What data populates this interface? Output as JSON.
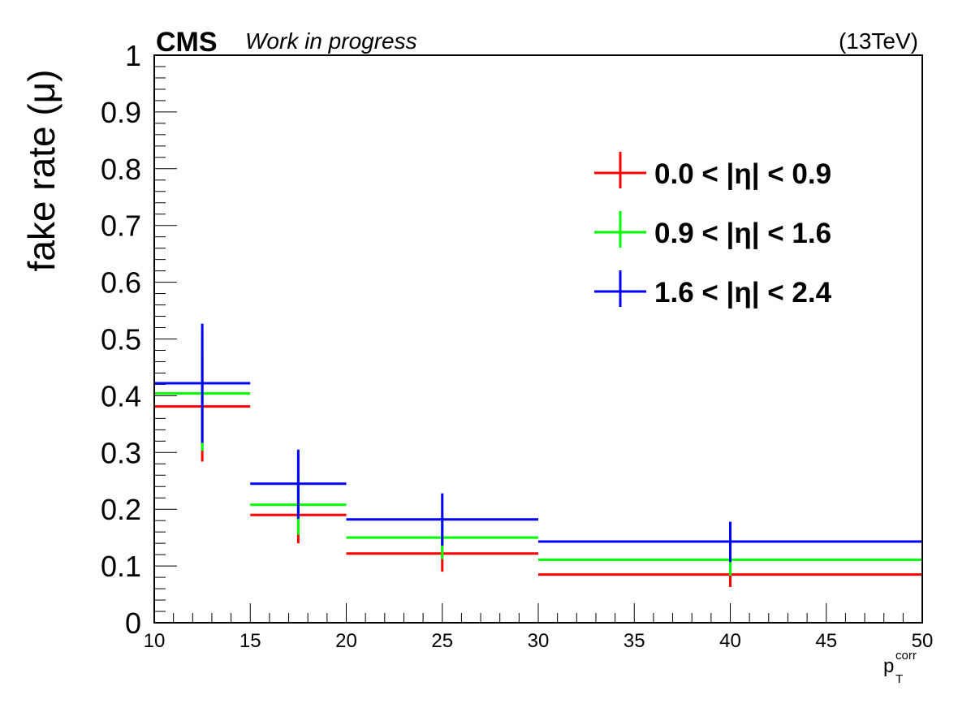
{
  "header": {
    "experiment": "CMS",
    "status": "Work in progress",
    "energy": "(13TeV)"
  },
  "chart_data": {
    "type": "scatter",
    "title": "",
    "ylabel": "fake rate (μ)",
    "xlabel_main": "p",
    "xlabel_sup": "corr",
    "xlabel_sub": "T",
    "xlim": [
      10,
      50
    ],
    "ylim": [
      0,
      1
    ],
    "x_ticks": [
      "10",
      "15",
      "20",
      "25",
      "30",
      "35",
      "40",
      "45",
      "50"
    ],
    "y_ticks": [
      "0",
      "0.1",
      "0.2",
      "0.3",
      "0.4",
      "0.5",
      "0.6",
      "0.7",
      "0.8",
      "0.9",
      "1"
    ],
    "grid": false,
    "legend_position": "top-right",
    "series": [
      {
        "name": "0.0 < |η| < 0.9",
        "color": "#ff0000",
        "points": [
          {
            "x": 12.5,
            "xlow": 10,
            "xhigh": 15,
            "y": 0.381,
            "ylow": 0.284,
            "yhigh": 0.475
          },
          {
            "x": 17.5,
            "xlow": 15,
            "xhigh": 20,
            "y": 0.19,
            "ylow": 0.14,
            "yhigh": 0.24
          },
          {
            "x": 25,
            "xlow": 20,
            "xhigh": 30,
            "y": 0.122,
            "ylow": 0.09,
            "yhigh": 0.155
          },
          {
            "x": 40,
            "xlow": 30,
            "xhigh": 50,
            "y": 0.085,
            "ylow": 0.063,
            "yhigh": 0.108
          }
        ]
      },
      {
        "name": "0.9 < |η| < 1.6",
        "color": "#00ff00",
        "points": [
          {
            "x": 12.5,
            "xlow": 10,
            "xhigh": 15,
            "y": 0.404,
            "ylow": 0.303,
            "yhigh": 0.505
          },
          {
            "x": 17.5,
            "xlow": 15,
            "xhigh": 20,
            "y": 0.208,
            "ylow": 0.155,
            "yhigh": 0.262
          },
          {
            "x": 25,
            "xlow": 20,
            "xhigh": 30,
            "y": 0.15,
            "ylow": 0.112,
            "yhigh": 0.188
          },
          {
            "x": 40,
            "xlow": 30,
            "xhigh": 50,
            "y": 0.111,
            "ylow": 0.083,
            "yhigh": 0.14
          }
        ]
      },
      {
        "name": "1.6 < |η| < 2.4",
        "color": "#0000ff",
        "points": [
          {
            "x": 12.5,
            "xlow": 10,
            "xhigh": 15,
            "y": 0.422,
            "ylow": 0.317,
            "yhigh": 0.527
          },
          {
            "x": 17.5,
            "xlow": 15,
            "xhigh": 20,
            "y": 0.245,
            "ylow": 0.183,
            "yhigh": 0.305
          },
          {
            "x": 25,
            "xlow": 20,
            "xhigh": 30,
            "y": 0.182,
            "ylow": 0.136,
            "yhigh": 0.228
          },
          {
            "x": 40,
            "xlow": 30,
            "xhigh": 50,
            "y": 0.143,
            "ylow": 0.107,
            "yhigh": 0.178
          }
        ]
      }
    ]
  }
}
